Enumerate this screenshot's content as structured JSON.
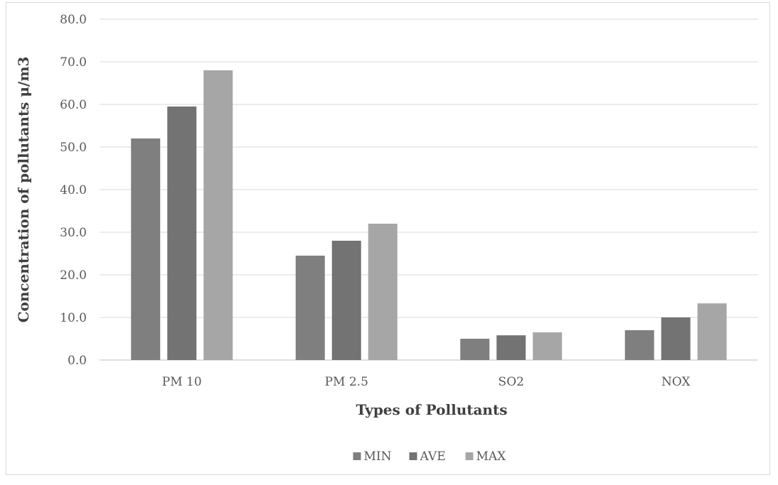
{
  "chart_data": {
    "type": "bar",
    "title": "",
    "xlabel": "Types of Pollutants",
    "ylabel": "Concentration of pollutants  μ/m3",
    "categories": [
      "PM 10",
      "PM 2.5",
      "SO2",
      "NOX"
    ],
    "series": [
      {
        "name": "MIN",
        "color": "#7f7f7f",
        "values": [
          52.0,
          24.5,
          5.0,
          7.0
        ]
      },
      {
        "name": "AVE",
        "color": "#737373",
        "values": [
          59.5,
          28.0,
          5.8,
          10.0
        ]
      },
      {
        "name": "MAX",
        "color": "#a6a6a6",
        "values": [
          68.0,
          32.0,
          6.5,
          13.3
        ]
      }
    ],
    "ylim": [
      0,
      80
    ],
    "yticks": [
      "0.0",
      "10.0",
      "20.0",
      "30.0",
      "40.0",
      "50.0",
      "60.0",
      "70.0",
      "80.0"
    ],
    "grid": true,
    "legend_position": "bottom"
  }
}
